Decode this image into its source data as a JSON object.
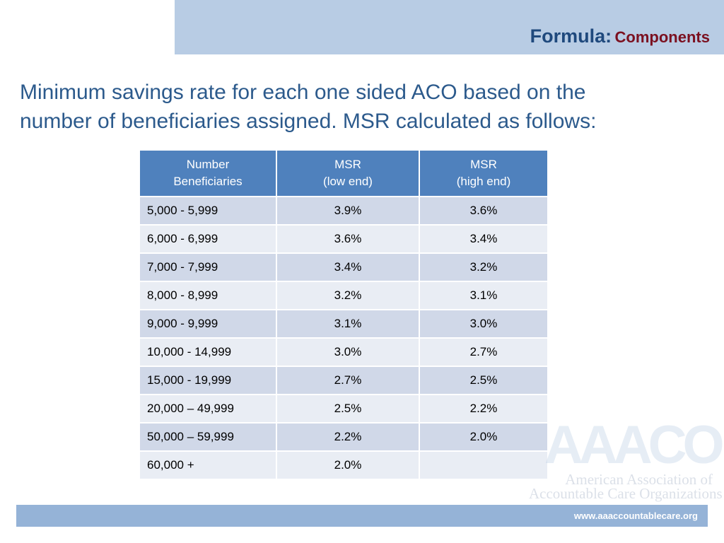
{
  "header": {
    "title_main": "Formula:",
    "title_sub": "Components"
  },
  "intro": {
    "line1": "Minimum savings rate for each one sided ACO based on the",
    "line2": "number of beneficiaries assigned.  MSR calculated as follows:"
  },
  "table": {
    "headers": [
      [
        "Number",
        "Beneficiaries"
      ],
      [
        "MSR",
        "(low end)"
      ],
      [
        "MSR",
        "(high end)"
      ]
    ],
    "rows": [
      [
        "5,000 - 5,999",
        "3.9%",
        "3.6%"
      ],
      [
        "6,000 - 6,999",
        "3.6%",
        "3.4%"
      ],
      [
        "7,000 - 7,999",
        "3.4%",
        "3.2%"
      ],
      [
        "8,000 - 8,999",
        "3.2%",
        "3.1%"
      ],
      [
        "9,000 - 9,999",
        "3.1%",
        "3.0%"
      ],
      [
        "10,000 - 14,999",
        "3.0%",
        "2.7%"
      ],
      [
        "15,000 - 19,999",
        "2.7%",
        "2.5%"
      ],
      [
        "20,000 – 49,999",
        "2.5%",
        "2.2%"
      ],
      [
        "50,000 – 59,999",
        "2.2%",
        "2.0%"
      ],
      [
        "60,000 +",
        "2.0%",
        ""
      ]
    ]
  },
  "logo": {
    "letters": "AAACO",
    "line1": "American Association of",
    "line2": "Accountable Care Organizations"
  },
  "footer": {
    "url": "www.aaaccountablecare.org"
  },
  "colors": {
    "title_bar": "#b8cce4",
    "title_main": "#1f497d",
    "title_sub": "#7b1020",
    "intro_text": "#2c5a8c",
    "table_header": "#4f81bd",
    "row_odd": "#d0d8e8",
    "row_even": "#e9edf4",
    "footer_bar": "#95b3d7"
  }
}
